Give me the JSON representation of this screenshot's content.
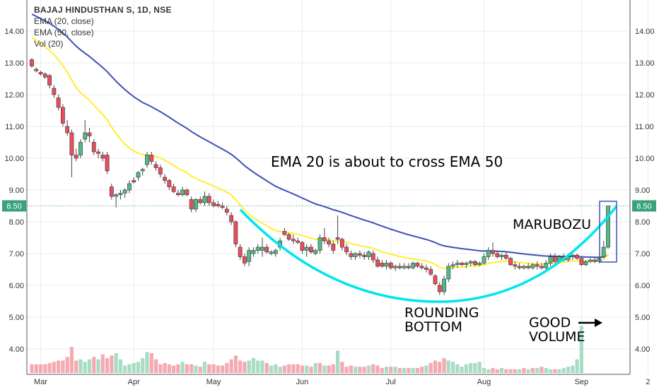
{
  "legend": {
    "symbol": "BAJAJ HINDUSTHAN S, 1D, NSE",
    "ema20": "EMA (20, close)",
    "ema50": "EMA (50, close)",
    "vol": "Vol (20)"
  },
  "annotations": {
    "ema_cross": "EMA 20 is about to cross EMA 50",
    "marubozu": "MARUBOZU",
    "rounding_line1": "ROUNDING",
    "rounding_line2": "BOTTOM",
    "good_line1": "GOOD",
    "good_line2": "VOLUME"
  },
  "price_label": "8.50",
  "chart_data": {
    "type": "candlestick",
    "title": "BAJAJ HINDUSTHAN S, 1D, NSE",
    "ylim": [
      3.3,
      14.6
    ],
    "y_ticks": [
      "4.00",
      "5.00",
      "6.00",
      "7.00",
      "8.00",
      "9.00",
      "10.00",
      "11.00",
      "12.00",
      "13.00",
      "14.00"
    ],
    "x_ticks": [
      {
        "label": "Mar",
        "index": 2
      },
      {
        "label": "Apr",
        "index": 23
      },
      {
        "label": "May",
        "index": 41
      },
      {
        "label": "Jun",
        "index": 61
      },
      {
        "label": "Jul",
        "index": 81
      },
      {
        "label": "Aug",
        "index": 102
      },
      {
        "label": "Sep",
        "index": 124
      },
      {
        "label": "2",
        "index": 139
      }
    ],
    "current_price": 8.5,
    "colors": {
      "up": "#53b987",
      "down": "#eb4d5c",
      "ema20": "#ffee33",
      "ema50": "#3f51b5",
      "arc": "#00e5ee",
      "box": "#3f51b5"
    },
    "candles": [
      {
        "o": 13.1,
        "h": 13.15,
        "l": 12.85,
        "c": 12.9
      },
      {
        "o": 12.8,
        "h": 12.85,
        "l": 12.7,
        "c": 12.75
      },
      {
        "o": 12.7,
        "h": 12.75,
        "l": 12.6,
        "c": 12.65
      },
      {
        "o": 12.65,
        "h": 12.7,
        "l": 12.5,
        "c": 12.55
      },
      {
        "o": 12.6,
        "h": 12.65,
        "l": 12.2,
        "c": 12.3
      },
      {
        "o": 12.2,
        "h": 12.3,
        "l": 11.9,
        "c": 12.0
      },
      {
        "o": 11.9,
        "h": 12.0,
        "l": 11.5,
        "c": 11.6
      },
      {
        "o": 11.6,
        "h": 11.7,
        "l": 11.0,
        "c": 11.1
      },
      {
        "o": 11.0,
        "h": 11.2,
        "l": 10.7,
        "c": 10.8
      },
      {
        "o": 10.8,
        "h": 10.9,
        "l": 9.4,
        "c": 10.1
      },
      {
        "o": 10.1,
        "h": 10.3,
        "l": 9.9,
        "c": 10.0
      },
      {
        "o": 10.1,
        "h": 10.6,
        "l": 10.0,
        "c": 10.5
      },
      {
        "o": 10.6,
        "h": 11.2,
        "l": 10.5,
        "c": 10.8
      },
      {
        "o": 10.8,
        "h": 10.95,
        "l": 10.5,
        "c": 10.7
      },
      {
        "o": 10.5,
        "h": 10.6,
        "l": 10.1,
        "c": 10.2
      },
      {
        "o": 10.2,
        "h": 10.3,
        "l": 10.0,
        "c": 10.15
      },
      {
        "o": 10.1,
        "h": 10.2,
        "l": 9.9,
        "c": 10.0
      },
      {
        "o": 10.1,
        "h": 10.2,
        "l": 9.5,
        "c": 9.6
      },
      {
        "o": 9.1,
        "h": 9.2,
        "l": 8.7,
        "c": 8.8
      },
      {
        "o": 8.8,
        "h": 8.9,
        "l": 8.45,
        "c": 8.85
      },
      {
        "o": 8.85,
        "h": 9.0,
        "l": 8.7,
        "c": 8.9
      },
      {
        "o": 8.9,
        "h": 9.05,
        "l": 8.75,
        "c": 9.0
      },
      {
        "o": 9.0,
        "h": 9.3,
        "l": 8.9,
        "c": 9.2
      },
      {
        "o": 9.3,
        "h": 9.4,
        "l": 9.2,
        "c": 9.25
      },
      {
        "o": 9.4,
        "h": 9.6,
        "l": 9.3,
        "c": 9.55
      },
      {
        "o": 9.6,
        "h": 9.7,
        "l": 9.45,
        "c": 9.65
      },
      {
        "o": 9.8,
        "h": 10.2,
        "l": 9.7,
        "c": 10.1
      },
      {
        "o": 10.1,
        "h": 10.2,
        "l": 9.8,
        "c": 9.9
      },
      {
        "o": 9.8,
        "h": 9.9,
        "l": 9.6,
        "c": 9.7
      },
      {
        "o": 9.7,
        "h": 9.8,
        "l": 9.4,
        "c": 9.5
      },
      {
        "o": 9.4,
        "h": 9.5,
        "l": 9.2,
        "c": 9.3
      },
      {
        "o": 9.3,
        "h": 9.35,
        "l": 9.0,
        "c": 9.1
      },
      {
        "o": 9.1,
        "h": 9.2,
        "l": 8.9,
        "c": 8.95
      },
      {
        "o": 8.9,
        "h": 9.0,
        "l": 8.8,
        "c": 8.85
      },
      {
        "o": 8.85,
        "h": 9.1,
        "l": 8.8,
        "c": 9.0
      },
      {
        "o": 9.0,
        "h": 9.05,
        "l": 8.8,
        "c": 8.85
      },
      {
        "o": 8.7,
        "h": 8.8,
        "l": 8.3,
        "c": 8.4
      },
      {
        "o": 8.4,
        "h": 8.75,
        "l": 8.3,
        "c": 8.7
      },
      {
        "o": 8.7,
        "h": 8.8,
        "l": 8.55,
        "c": 8.6
      },
      {
        "o": 8.6,
        "h": 8.95,
        "l": 8.5,
        "c": 8.8
      },
      {
        "o": 8.8,
        "h": 8.9,
        "l": 8.5,
        "c": 8.6
      },
      {
        "o": 8.6,
        "h": 8.7,
        "l": 8.45,
        "c": 8.5
      },
      {
        "o": 8.55,
        "h": 8.65,
        "l": 8.45,
        "c": 8.5
      },
      {
        "o": 8.5,
        "h": 8.6,
        "l": 8.4,
        "c": 8.45
      },
      {
        "o": 8.4,
        "h": 8.5,
        "l": 8.2,
        "c": 8.3
      },
      {
        "o": 8.2,
        "h": 8.3,
        "l": 7.9,
        "c": 8.0
      },
      {
        "o": 8.0,
        "h": 8.05,
        "l": 7.2,
        "c": 7.3
      },
      {
        "o": 7.2,
        "h": 7.3,
        "l": 6.8,
        "c": 6.9
      },
      {
        "o": 6.9,
        "h": 7.0,
        "l": 6.6,
        "c": 6.7
      },
      {
        "o": 6.75,
        "h": 7.2,
        "l": 6.6,
        "c": 7.1
      },
      {
        "o": 7.0,
        "h": 7.2,
        "l": 6.9,
        "c": 7.1
      },
      {
        "o": 7.1,
        "h": 7.3,
        "l": 7.0,
        "c": 7.2
      },
      {
        "o": 7.1,
        "h": 7.5,
        "l": 6.9,
        "c": 7.2
      },
      {
        "o": 7.2,
        "h": 7.3,
        "l": 7.0,
        "c": 7.05
      },
      {
        "o": 7.0,
        "h": 7.1,
        "l": 6.95,
        "c": 7.05
      },
      {
        "o": 7.0,
        "h": 7.15,
        "l": 6.9,
        "c": 7.1
      },
      {
        "o": 7.2,
        "h": 7.5,
        "l": 7.1,
        "c": 7.4
      },
      {
        "o": 7.7,
        "h": 7.8,
        "l": 7.55,
        "c": 7.6
      },
      {
        "o": 7.6,
        "h": 7.65,
        "l": 7.4,
        "c": 7.45
      },
      {
        "o": 7.45,
        "h": 7.6,
        "l": 7.3,
        "c": 7.4
      },
      {
        "o": 7.4,
        "h": 7.5,
        "l": 7.3,
        "c": 7.35
      },
      {
        "o": 7.35,
        "h": 7.4,
        "l": 7.0,
        "c": 7.1
      },
      {
        "o": 7.1,
        "h": 7.3,
        "l": 6.9,
        "c": 7.2
      },
      {
        "o": 7.2,
        "h": 7.3,
        "l": 7.0,
        "c": 7.05
      },
      {
        "o": 7.0,
        "h": 7.15,
        "l": 6.95,
        "c": 7.1
      },
      {
        "o": 7.1,
        "h": 7.6,
        "l": 7.0,
        "c": 7.5
      },
      {
        "o": 7.5,
        "h": 7.8,
        "l": 7.3,
        "c": 7.4
      },
      {
        "o": 7.4,
        "h": 7.5,
        "l": 7.2,
        "c": 7.3
      },
      {
        "o": 7.3,
        "h": 7.4,
        "l": 7.0,
        "c": 7.1
      },
      {
        "o": 7.5,
        "h": 8.2,
        "l": 7.3,
        "c": 7.45
      },
      {
        "o": 7.45,
        "h": 7.5,
        "l": 7.1,
        "c": 7.2
      },
      {
        "o": 7.2,
        "h": 7.3,
        "l": 6.95,
        "c": 7.05
      },
      {
        "o": 7.0,
        "h": 7.1,
        "l": 6.8,
        "c": 6.9
      },
      {
        "o": 6.9,
        "h": 7.05,
        "l": 6.8,
        "c": 7.0
      },
      {
        "o": 7.0,
        "h": 7.1,
        "l": 6.85,
        "c": 6.95
      },
      {
        "o": 6.95,
        "h": 7.05,
        "l": 6.8,
        "c": 6.9
      },
      {
        "o": 6.9,
        "h": 7.1,
        "l": 6.8,
        "c": 7.05
      },
      {
        "o": 7.0,
        "h": 7.1,
        "l": 6.7,
        "c": 6.8
      },
      {
        "o": 6.8,
        "h": 6.9,
        "l": 6.55,
        "c": 6.6
      },
      {
        "o": 6.7,
        "h": 6.8,
        "l": 6.55,
        "c": 6.6
      },
      {
        "o": 6.6,
        "h": 6.8,
        "l": 6.5,
        "c": 6.7
      },
      {
        "o": 6.7,
        "h": 6.75,
        "l": 6.5,
        "c": 6.55
      },
      {
        "o": 6.55,
        "h": 6.65,
        "l": 6.45,
        "c": 6.6
      },
      {
        "o": 6.6,
        "h": 6.7,
        "l": 6.5,
        "c": 6.55
      },
      {
        "o": 6.55,
        "h": 6.7,
        "l": 6.5,
        "c": 6.6
      },
      {
        "o": 6.6,
        "h": 6.7,
        "l": 6.5,
        "c": 6.55
      },
      {
        "o": 6.55,
        "h": 6.75,
        "l": 6.5,
        "c": 6.7
      },
      {
        "o": 6.7,
        "h": 6.75,
        "l": 6.55,
        "c": 6.6
      },
      {
        "o": 6.6,
        "h": 6.7,
        "l": 6.5,
        "c": 6.55
      },
      {
        "o": 6.55,
        "h": 6.65,
        "l": 6.4,
        "c": 6.5
      },
      {
        "o": 6.5,
        "h": 6.6,
        "l": 6.3,
        "c": 6.35
      },
      {
        "o": 6.3,
        "h": 6.35,
        "l": 6.0,
        "c": 6.05
      },
      {
        "o": 6.0,
        "h": 6.1,
        "l": 5.7,
        "c": 5.8
      },
      {
        "o": 5.8,
        "h": 6.3,
        "l": 5.7,
        "c": 6.2
      },
      {
        "o": 6.2,
        "h": 6.7,
        "l": 6.1,
        "c": 6.6
      },
      {
        "o": 6.6,
        "h": 6.75,
        "l": 6.5,
        "c": 6.65
      },
      {
        "o": 6.65,
        "h": 6.8,
        "l": 6.55,
        "c": 6.7
      },
      {
        "o": 6.7,
        "h": 6.75,
        "l": 6.6,
        "c": 6.65
      },
      {
        "o": 6.65,
        "h": 6.75,
        "l": 6.55,
        "c": 6.7
      },
      {
        "o": 6.7,
        "h": 6.8,
        "l": 6.6,
        "c": 6.75
      },
      {
        "o": 6.75,
        "h": 6.8,
        "l": 6.6,
        "c": 6.65
      },
      {
        "o": 6.65,
        "h": 6.75,
        "l": 6.6,
        "c": 6.7
      },
      {
        "o": 6.7,
        "h": 7.0,
        "l": 6.65,
        "c": 6.9
      },
      {
        "o": 6.9,
        "h": 7.2,
        "l": 6.8,
        "c": 7.1
      },
      {
        "o": 7.1,
        "h": 7.35,
        "l": 6.9,
        "c": 7.0
      },
      {
        "o": 7.0,
        "h": 7.1,
        "l": 6.85,
        "c": 6.9
      },
      {
        "o": 6.9,
        "h": 7.0,
        "l": 6.8,
        "c": 6.95
      },
      {
        "o": 6.95,
        "h": 7.05,
        "l": 6.8,
        "c": 6.85
      },
      {
        "o": 6.85,
        "h": 6.9,
        "l": 6.6,
        "c": 6.65
      },
      {
        "o": 6.65,
        "h": 6.75,
        "l": 6.5,
        "c": 6.6
      },
      {
        "o": 6.6,
        "h": 6.7,
        "l": 6.5,
        "c": 6.55
      },
      {
        "o": 6.55,
        "h": 6.65,
        "l": 6.5,
        "c": 6.6
      },
      {
        "o": 6.6,
        "h": 6.7,
        "l": 6.5,
        "c": 6.55
      },
      {
        "o": 6.55,
        "h": 6.7,
        "l": 6.5,
        "c": 6.65
      },
      {
        "o": 6.65,
        "h": 6.75,
        "l": 6.5,
        "c": 6.6
      },
      {
        "o": 6.6,
        "h": 6.7,
        "l": 6.5,
        "c": 6.55
      },
      {
        "o": 6.55,
        "h": 6.8,
        "l": 6.5,
        "c": 6.7
      },
      {
        "o": 6.7,
        "h": 7.0,
        "l": 6.6,
        "c": 6.9
      },
      {
        "o": 6.9,
        "h": 7.0,
        "l": 6.7,
        "c": 6.75
      },
      {
        "o": 6.75,
        "h": 6.95,
        "l": 6.7,
        "c": 6.9
      },
      {
        "o": 6.9,
        "h": 7.0,
        "l": 6.75,
        "c": 6.8
      },
      {
        "o": 6.8,
        "h": 6.95,
        "l": 6.75,
        "c": 6.9
      },
      {
        "o": 6.9,
        "h": 7.0,
        "l": 6.8,
        "c": 6.95
      },
      {
        "o": 6.95,
        "h": 7.0,
        "l": 6.8,
        "c": 6.85
      },
      {
        "o": 6.85,
        "h": 6.9,
        "l": 6.6,
        "c": 6.65
      },
      {
        "o": 6.65,
        "h": 6.8,
        "l": 6.6,
        "c": 6.75
      },
      {
        "o": 6.75,
        "h": 6.85,
        "l": 6.7,
        "c": 6.8
      },
      {
        "o": 6.8,
        "h": 6.9,
        "l": 6.7,
        "c": 6.75
      },
      {
        "o": 6.75,
        "h": 6.9,
        "l": 6.7,
        "c": 6.85
      },
      {
        "o": 6.9,
        "h": 7.4,
        "l": 6.85,
        "c": 7.2
      },
      {
        "o": 7.2,
        "h": 8.5,
        "l": 7.15,
        "c": 8.5
      }
    ],
    "volume": [
      0.7,
      0.7,
      0.7,
      0.7,
      0.8,
      0.9,
      1.0,
      1.0,
      1.3,
      2.1,
      1.0,
      1.1,
      0.9,
      1.1,
      1.3,
      1.1,
      1.5,
      1.2,
      1.4,
      1.6,
      1.1,
      0.6,
      0.7,
      0.8,
      0.9,
      1.2,
      1.7,
      1.6,
      1.1,
      0.7,
      0.8,
      0.7,
      0.6,
      0.7,
      0.9,
      0.7,
      0.7,
      0.6,
      0.5,
      0.9,
      0.7,
      0.7,
      0.6,
      0.6,
      0.8,
      1.1,
      1.4,
      1.0,
      0.9,
      1.0,
      1.2,
      1.0,
      1.0,
      0.8,
      0.6,
      0.7,
      0.5,
      0.6,
      0.7,
      0.7,
      0.7,
      0.6,
      0.6,
      0.5,
      0.8,
      0.8,
      0.6,
      0.6,
      0.7,
      1.8,
      0.9,
      0.5,
      0.6,
      0.5,
      0.5,
      0.5,
      0.6,
      0.7,
      0.6,
      0.4,
      0.5,
      0.5,
      0.5,
      0.4,
      0.4,
      0.4,
      0.4,
      0.4,
      0.5,
      0.6,
      0.8,
      1.0,
      0.9,
      1.2,
      1.0,
      0.9,
      0.7,
      0.5,
      0.7,
      0.8,
      0.8,
      0.9,
      0.4,
      0.3,
      0.4,
      0.3,
      0.4,
      0.3,
      0.3,
      0.3,
      0.3,
      0.4,
      0.3,
      0.4,
      0.4,
      0.5,
      0.4,
      0.3,
      0.3,
      0.3,
      0.4,
      0.5,
      0.6,
      1.1,
      3.8
    ],
    "volume_up": [
      false,
      false,
      false,
      false,
      false,
      false,
      false,
      false,
      false,
      false,
      false,
      true,
      true,
      true,
      false,
      true,
      false,
      false,
      false,
      true,
      true,
      true,
      true,
      true,
      true,
      true,
      true,
      false,
      false,
      false,
      false,
      false,
      false,
      false,
      true,
      false,
      false,
      true,
      false,
      true,
      false,
      false,
      false,
      false,
      false,
      false,
      false,
      false,
      false,
      true,
      true,
      true,
      true,
      false,
      true,
      true,
      true,
      false,
      false,
      false,
      false,
      false,
      true,
      false,
      true,
      false,
      true,
      false,
      false,
      true,
      false,
      false,
      false,
      true,
      false,
      false,
      true,
      false,
      false,
      false,
      true,
      false,
      true,
      false,
      true,
      false,
      true,
      false,
      false,
      true,
      false,
      false,
      false,
      false,
      true,
      true,
      true,
      true,
      true,
      true,
      true,
      true,
      true,
      true,
      false,
      false,
      true,
      false,
      false,
      false,
      true,
      false,
      true,
      false,
      true,
      false,
      true,
      true,
      false,
      true,
      true,
      true,
      true,
      true,
      true
    ]
  }
}
